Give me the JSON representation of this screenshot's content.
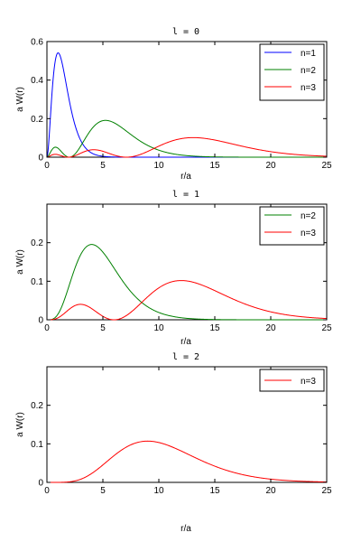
{
  "chart_data": [
    {
      "type": "line",
      "title": "l = 0",
      "xlabel": "r/a",
      "ylabel": "a W(r)",
      "xlim": [
        0,
        25
      ],
      "ylim": [
        0,
        0.6
      ],
      "xticks": [
        "0",
        "5",
        "10",
        "15",
        "20",
        "25"
      ],
      "yticks": [
        "0",
        "0.2",
        "0.4",
        "0.6"
      ],
      "legend_position": "top-right",
      "series": [
        {
          "name": "n=1",
          "color": "#0000ff",
          "n": 1,
          "l": 0
        },
        {
          "name": "n=2",
          "color": "#008000",
          "n": 2,
          "l": 0
        },
        {
          "name": "n=3",
          "color": "#ff0000",
          "n": 3,
          "l": 0
        }
      ]
    },
    {
      "type": "line",
      "title": "l = 1",
      "xlabel": "r/a",
      "ylabel": "a W(r)",
      "xlim": [
        0,
        25
      ],
      "ylim": [
        0,
        0.3
      ],
      "xticks": [
        "0",
        "5",
        "10",
        "15",
        "20",
        "25"
      ],
      "yticks": [
        "0",
        "0.1",
        "0.2"
      ],
      "legend_position": "top-right",
      "series": [
        {
          "name": "n=2",
          "color": "#008000",
          "n": 2,
          "l": 1
        },
        {
          "name": "n=3",
          "color": "#ff0000",
          "n": 3,
          "l": 1
        }
      ]
    },
    {
      "type": "line",
      "title": "l = 2",
      "xlabel": "r/a",
      "ylabel": "a W(r)",
      "xlim": [
        0,
        25
      ],
      "ylim": [
        0,
        0.3
      ],
      "xticks": [
        "0",
        "5",
        "10",
        "15",
        "20",
        "25"
      ],
      "yticks": [
        "0",
        "0.1",
        "0.2"
      ],
      "legend_position": "top-right",
      "series": [
        {
          "name": "n=3",
          "color": "#ff0000",
          "n": 3,
          "l": 2
        }
      ]
    }
  ]
}
